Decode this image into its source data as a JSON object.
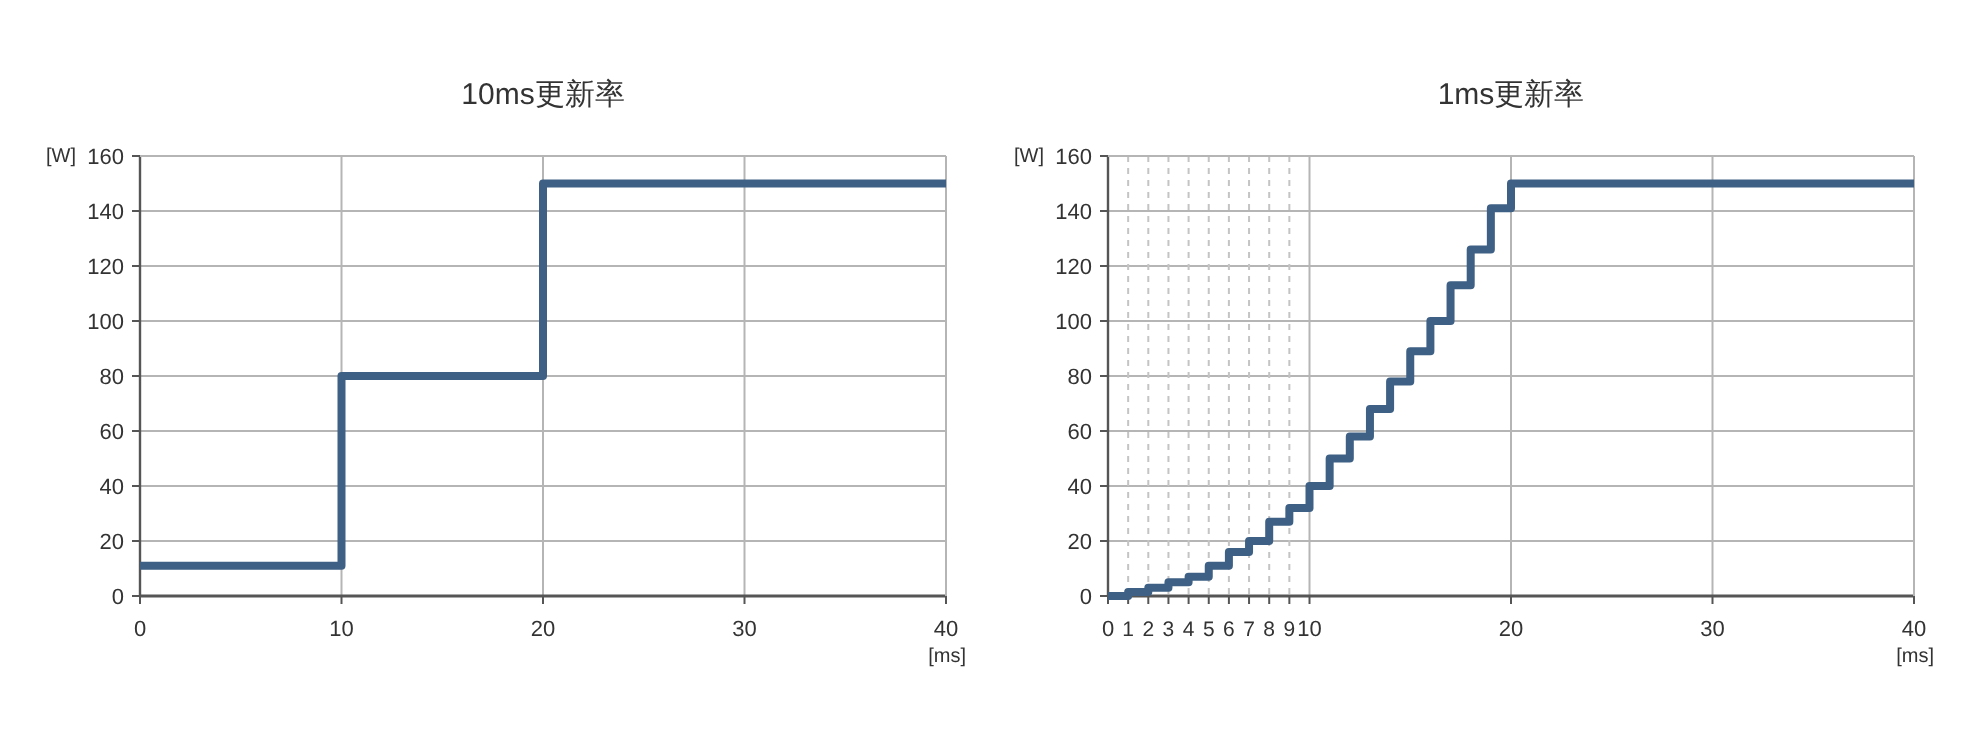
{
  "chart_data": [
    {
      "type": "step",
      "title": "10ms更新率",
      "xlabel": "[ms]",
      "ylabel": "[W]",
      "x": [
        0,
        10,
        20,
        40
      ],
      "series": [
        {
          "color": "#3e6085",
          "values": [
            11,
            80,
            150,
            150
          ]
        }
      ],
      "xlim": [
        0,
        40
      ],
      "xticks": [
        0,
        10,
        20,
        30,
        40
      ],
      "ylim": [
        0,
        160
      ],
      "yticks": [
        0,
        20,
        40,
        60,
        80,
        100,
        120,
        140,
        160
      ],
      "grid": true,
      "line_style": "solid"
    },
    {
      "type": "step",
      "title": "1ms更新率",
      "xlabel": "[ms]",
      "ylabel": "[W]",
      "x": [
        0,
        1,
        2,
        3,
        4,
        5,
        6,
        7,
        8,
        9,
        10,
        11,
        12,
        13,
        14,
        15,
        16,
        17,
        18,
        19,
        20,
        40
      ],
      "series": [
        {
          "color": "#3e6085",
          "values": [
            0,
            1.5,
            3,
            5,
            7,
            11,
            16,
            20,
            27,
            32,
            40,
            50,
            58,
            68,
            78,
            89,
            100,
            113,
            126,
            141,
            150,
            150
          ]
        }
      ],
      "xlim": [
        0,
        40
      ],
      "xticks": [
        0,
        1,
        2,
        3,
        4,
        5,
        6,
        7,
        8,
        9,
        10,
        20,
        30,
        40
      ],
      "ylim": [
        0,
        160
      ],
      "yticks": [
        0,
        20,
        40,
        60,
        80,
        100,
        120,
        140,
        160
      ],
      "grid": true,
      "line_style": "solid"
    }
  ]
}
